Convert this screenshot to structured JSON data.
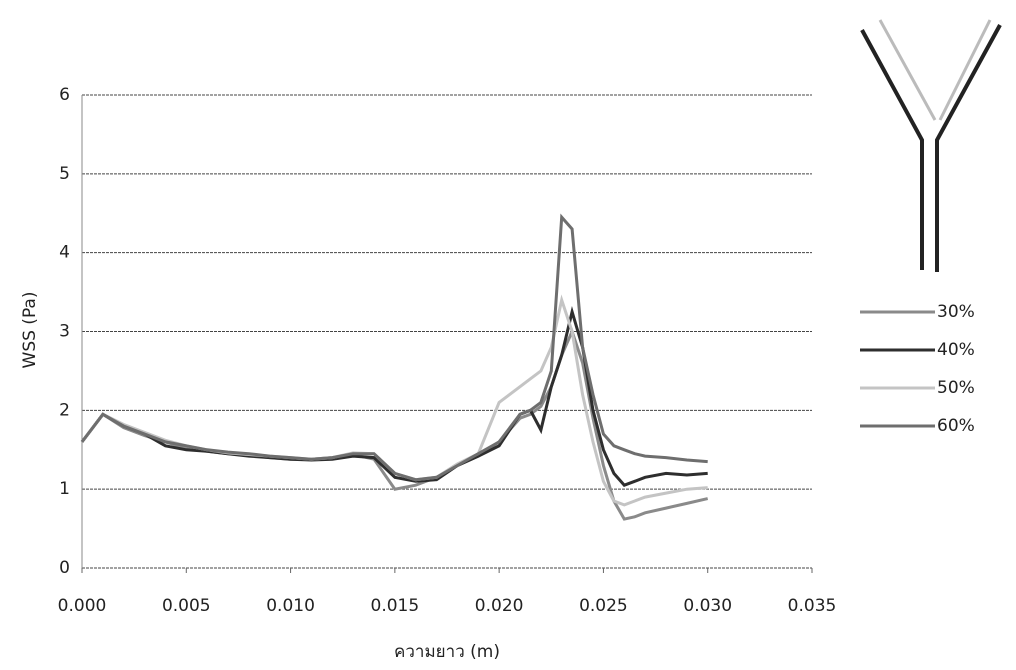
{
  "chart_data": {
    "type": "line",
    "x_label": "ความยาว (m)",
    "y_label": "WSS (Pa)",
    "x": [
      0,
      0.001,
      0.002,
      0.003,
      0.004,
      0.005,
      0.006,
      0.007,
      0.008,
      0.009,
      0.01,
      0.011,
      0.012,
      0.013,
      0.014,
      0.015,
      0.016,
      0.017,
      0.018,
      0.019,
      0.02,
      0.021,
      0.0215,
      0.022,
      0.0225,
      0.023,
      0.0235,
      0.024,
      0.0245,
      0.025,
      0.0255,
      0.026,
      0.0265,
      0.027,
      0.028,
      0.029,
      0.03
    ],
    "series": [
      {
        "name": "30%",
        "color": "#8a8a8a",
        "values": [
          1.6,
          1.95,
          1.78,
          1.68,
          1.6,
          1.52,
          1.48,
          1.45,
          1.43,
          1.4,
          1.38,
          1.38,
          1.4,
          1.44,
          1.38,
          1.0,
          1.05,
          1.15,
          1.3,
          1.42,
          1.6,
          1.9,
          1.95,
          2.05,
          2.3,
          2.7,
          3.0,
          2.6,
          1.9,
          1.3,
          0.85,
          0.62,
          0.65,
          0.7,
          0.76,
          0.82,
          0.88
        ]
      },
      {
        "name": "40%",
        "color": "#2e2e2e",
        "values": [
          1.6,
          1.95,
          1.8,
          1.7,
          1.55,
          1.5,
          1.48,
          1.45,
          1.42,
          1.4,
          1.38,
          1.37,
          1.38,
          1.42,
          1.4,
          1.15,
          1.1,
          1.12,
          1.3,
          1.42,
          1.55,
          1.95,
          2.0,
          1.75,
          2.3,
          2.7,
          3.25,
          2.8,
          2.0,
          1.5,
          1.2,
          1.05,
          1.1,
          1.15,
          1.2,
          1.18,
          1.2
        ]
      },
      {
        "name": "50%",
        "color": "#c4c4c4",
        "values": [
          1.6,
          1.95,
          1.82,
          1.72,
          1.62,
          1.55,
          1.5,
          1.46,
          1.44,
          1.42,
          1.4,
          1.38,
          1.4,
          1.46,
          1.45,
          1.2,
          1.12,
          1.15,
          1.32,
          1.45,
          2.1,
          2.3,
          2.4,
          2.5,
          2.8,
          3.4,
          3.0,
          2.2,
          1.6,
          1.1,
          0.85,
          0.8,
          0.85,
          0.9,
          0.95,
          1.0,
          1.02
        ]
      },
      {
        "name": "60%",
        "color": "#6e6e6e",
        "values": [
          1.6,
          1.95,
          1.8,
          1.7,
          1.6,
          1.55,
          1.5,
          1.47,
          1.45,
          1.42,
          1.4,
          1.38,
          1.4,
          1.45,
          1.45,
          1.2,
          1.12,
          1.15,
          1.3,
          1.45,
          1.6,
          1.95,
          2.0,
          2.1,
          2.5,
          4.45,
          4.3,
          2.8,
          2.2,
          1.7,
          1.55,
          1.5,
          1.45,
          1.42,
          1.4,
          1.37,
          1.35
        ]
      }
    ],
    "xlim": [
      0,
      0.035
    ],
    "xticks": [
      {
        "value": 0,
        "label": "0.000"
      },
      {
        "value": 0.005,
        "label": "0.005"
      },
      {
        "value": 0.01,
        "label": "0.010"
      },
      {
        "value": 0.015,
        "label": "0.015"
      },
      {
        "value": 0.02,
        "label": "0.020"
      },
      {
        "value": 0.025,
        "label": "0.025"
      },
      {
        "value": 0.03,
        "label": "0.030"
      },
      {
        "value": 0.035,
        "label": "0.035"
      }
    ],
    "ylim": [
      0,
      6
    ],
    "yticks": [
      0,
      1,
      2,
      3,
      4,
      5,
      6
    ],
    "grid": true
  }
}
